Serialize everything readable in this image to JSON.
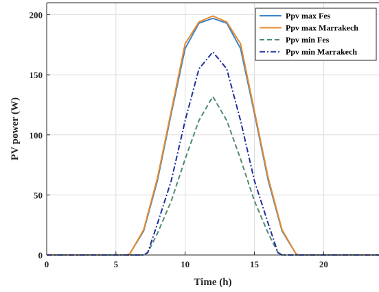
{
  "chart_data": {
    "type": "line",
    "xlabel": "Time (h)",
    "ylabel": "PV power  (W)",
    "xlim": [
      0,
      24
    ],
    "ylim": [
      0,
      210
    ],
    "xticks": [
      0,
      5,
      10,
      15,
      20
    ],
    "yticks": [
      0,
      50,
      100,
      150,
      200
    ],
    "grid": true,
    "legend_position": "top-right",
    "series": [
      {
        "name": "Ppv max Fes",
        "color": "#3A86C8",
        "style": "solid",
        "points": [
          [
            0,
            0
          ],
          [
            5,
            0
          ],
          [
            5.8,
            0
          ],
          [
            6,
            1
          ],
          [
            7,
            20
          ],
          [
            8,
            62
          ],
          [
            9,
            118
          ],
          [
            10,
            172
          ],
          [
            11,
            193
          ],
          [
            12,
            197
          ],
          [
            13,
            193
          ],
          [
            14,
            172
          ],
          [
            15,
            118
          ],
          [
            16,
            62
          ],
          [
            17,
            20
          ],
          [
            18,
            1
          ],
          [
            18.2,
            0
          ],
          [
            24,
            0
          ]
        ]
      },
      {
        "name": "Ppv max Marrakech",
        "color": "#E8892B",
        "style": "solid",
        "points": [
          [
            0,
            0
          ],
          [
            5,
            0
          ],
          [
            5.8,
            0
          ],
          [
            6,
            1
          ],
          [
            7,
            21
          ],
          [
            8,
            64
          ],
          [
            9,
            120
          ],
          [
            10,
            176
          ],
          [
            11,
            194
          ],
          [
            12,
            199
          ],
          [
            13,
            194
          ],
          [
            14,
            176
          ],
          [
            15,
            120
          ],
          [
            16,
            64
          ],
          [
            17,
            21
          ],
          [
            18,
            1
          ],
          [
            18.2,
            0
          ],
          [
            24,
            0
          ]
        ]
      },
      {
        "name": "Ppv min Fes",
        "color": "#4E8A6E",
        "style": "dashed",
        "points": [
          [
            0,
            0
          ],
          [
            6,
            0
          ],
          [
            7,
            0
          ],
          [
            7.3,
            2
          ],
          [
            8,
            18
          ],
          [
            9,
            45
          ],
          [
            10,
            80
          ],
          [
            11,
            112
          ],
          [
            12,
            132
          ],
          [
            13,
            112
          ],
          [
            14,
            80
          ],
          [
            15,
            45
          ],
          [
            16,
            18
          ],
          [
            16.7,
            2
          ],
          [
            17,
            0
          ],
          [
            24,
            0
          ]
        ]
      },
      {
        "name": "Ppv min Marrakech",
        "color": "#1F2D9E",
        "style": "dashdot",
        "points": [
          [
            0,
            0
          ],
          [
            6,
            0
          ],
          [
            7,
            0
          ],
          [
            7.3,
            2
          ],
          [
            8,
            26
          ],
          [
            9,
            62
          ],
          [
            10,
            112
          ],
          [
            11,
            155
          ],
          [
            12,
            169
          ],
          [
            13,
            155
          ],
          [
            14,
            112
          ],
          [
            15,
            62
          ],
          [
            16,
            26
          ],
          [
            16.7,
            2
          ],
          [
            17,
            0
          ],
          [
            24,
            0
          ]
        ]
      }
    ]
  }
}
